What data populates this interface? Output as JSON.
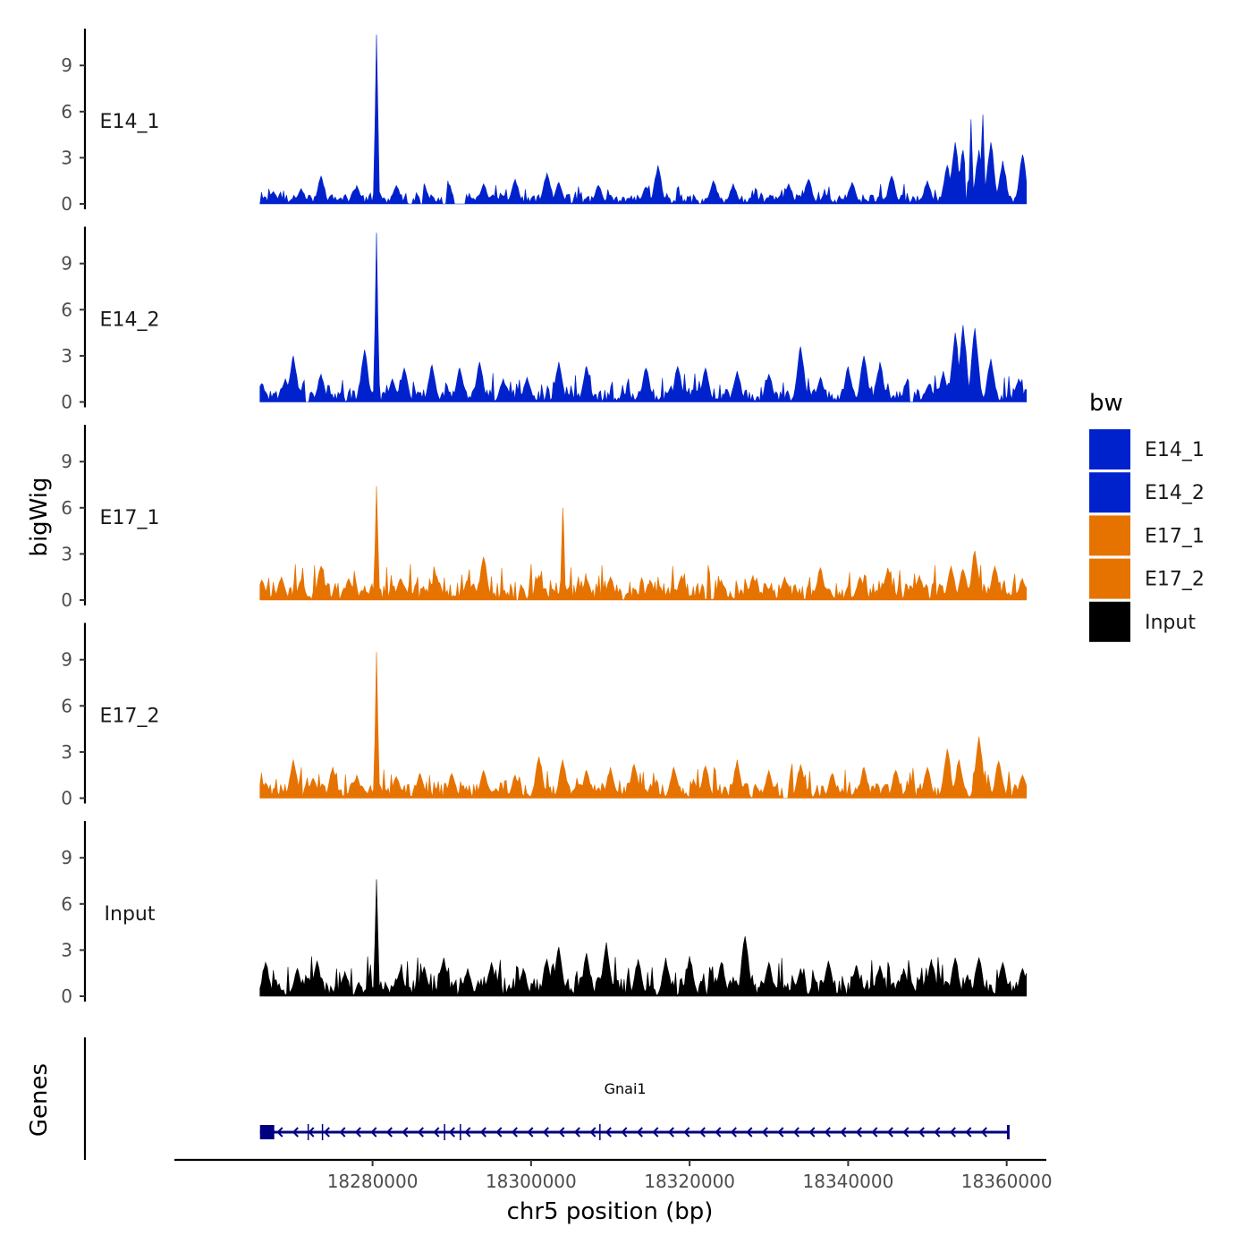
{
  "chart_data": {
    "type": "area",
    "title": "",
    "xlabel": "chr5 position (bp)",
    "ylabel": "bigWig",
    "genes_label": "Genes",
    "xlim": [
      18255000,
      18365000
    ],
    "x_ticks": [
      18280000,
      18300000,
      18320000,
      18340000,
      18360000
    ],
    "x_tick_labels": [
      "18280000",
      "18300000",
      "18320000",
      "18340000",
      "18360000"
    ],
    "ylim": [
      0,
      11.5
    ],
    "y_ticks": [
      0,
      3,
      6,
      9
    ],
    "y_tick_labels": [
      "0",
      "3",
      "6",
      "9"
    ],
    "data_range": [
      18265800,
      18362500
    ],
    "legend": {
      "title": "bw",
      "entries": [
        {
          "label": "E14_1",
          "color": "#0022CC"
        },
        {
          "label": "E14_2",
          "color": "#0022CC"
        },
        {
          "label": "E17_1",
          "color": "#E67300"
        },
        {
          "label": "E17_2",
          "color": "#E67300"
        },
        {
          "label": "Input",
          "color": "#000000"
        }
      ]
    },
    "series": [
      {
        "name": "E14_1",
        "color": "#0022CC",
        "baseline": 0.5,
        "peaks": [
          [
            18267500,
            0.8
          ],
          [
            18271000,
            1.0
          ],
          [
            18273500,
            1.8
          ],
          [
            18278000,
            1.2
          ],
          [
            18280500,
            11.0
          ],
          [
            18283000,
            1.2
          ],
          [
            18286500,
            1.3
          ],
          [
            18289500,
            1.5
          ],
          [
            18294000,
            1.3
          ],
          [
            18298000,
            1.6
          ],
          [
            18302000,
            2.0
          ],
          [
            18303500,
            1.4
          ],
          [
            18308500,
            1.2
          ],
          [
            18314500,
            1.1
          ],
          [
            18316000,
            2.5
          ],
          [
            18323000,
            1.5
          ],
          [
            18325500,
            1.3
          ],
          [
            18332500,
            1.3
          ],
          [
            18335000,
            1.6
          ],
          [
            18340500,
            1.4
          ],
          [
            18345500,
            1.8
          ],
          [
            18350000,
            1.5
          ],
          [
            18352500,
            2.5
          ],
          [
            18353500,
            4.0
          ],
          [
            18354500,
            3.5
          ],
          [
            18355500,
            5.5
          ],
          [
            18356500,
            3.5
          ],
          [
            18357000,
            5.8
          ],
          [
            18358000,
            4.0
          ],
          [
            18359500,
            2.8
          ],
          [
            18362000,
            3.2
          ]
        ],
        "gaps": [
          [
            18284500,
            18285000
          ],
          [
            18286000,
            18286500
          ],
          [
            18288800,
            18289500
          ],
          [
            18290200,
            18291800
          ],
          [
            18354800,
            18355000
          ]
        ]
      },
      {
        "name": "E14_2",
        "color": "#0022CC",
        "baseline": 0.7,
        "peaks": [
          [
            18266000,
            1.2
          ],
          [
            18269000,
            1.5
          ],
          [
            18270000,
            3.0
          ],
          [
            18273500,
            1.8
          ],
          [
            18279000,
            3.4
          ],
          [
            18280500,
            11.0
          ],
          [
            18282500,
            1.5
          ],
          [
            18284000,
            2.2
          ],
          [
            18287500,
            2.4
          ],
          [
            18291000,
            2.2
          ],
          [
            18293500,
            2.6
          ],
          [
            18296500,
            1.5
          ],
          [
            18299500,
            1.6
          ],
          [
            18303500,
            2.6
          ],
          [
            18307000,
            2.3
          ],
          [
            18314500,
            2.2
          ],
          [
            18318500,
            2.3
          ],
          [
            18322000,
            2.2
          ],
          [
            18326000,
            2.0
          ],
          [
            18330000,
            1.8
          ],
          [
            18334000,
            3.6
          ],
          [
            18336500,
            1.6
          ],
          [
            18340000,
            2.3
          ],
          [
            18342000,
            3.0
          ],
          [
            18344000,
            2.6
          ],
          [
            18347500,
            1.5
          ],
          [
            18352000,
            2.0
          ],
          [
            18353500,
            4.5
          ],
          [
            18354500,
            5.0
          ],
          [
            18356000,
            4.8
          ],
          [
            18358000,
            2.8
          ],
          [
            18361500,
            1.5
          ]
        ],
        "gaps": [
          [
            18271500,
            18272000
          ],
          [
            18347700,
            18348300
          ]
        ]
      },
      {
        "name": "E17_1",
        "color": "#E67300",
        "baseline": 0.9,
        "peaks": [
          [
            18266000,
            1.3
          ],
          [
            18268500,
            1.5
          ],
          [
            18271000,
            1.3
          ],
          [
            18273500,
            2.2
          ],
          [
            18277000,
            1.4
          ],
          [
            18280500,
            7.4
          ],
          [
            18283500,
            1.4
          ],
          [
            18288000,
            1.6
          ],
          [
            18292000,
            1.3
          ],
          [
            18294000,
            2.8
          ],
          [
            18298000,
            1.2
          ],
          [
            18301000,
            1.6
          ],
          [
            18304000,
            6.0
          ],
          [
            18307000,
            1.4
          ],
          [
            18310000,
            1.5
          ],
          [
            18315000,
            1.3
          ],
          [
            18319000,
            1.6
          ],
          [
            18324000,
            1.3
          ],
          [
            18328000,
            1.6
          ],
          [
            18332000,
            1.5
          ],
          [
            18336500,
            2.1
          ],
          [
            18341500,
            1.5
          ],
          [
            18345000,
            2.1
          ],
          [
            18349000,
            1.6
          ],
          [
            18353000,
            2.2
          ],
          [
            18354500,
            2.0
          ],
          [
            18356000,
            3.2
          ],
          [
            18358500,
            2.2
          ],
          [
            18362000,
            1.4
          ]
        ],
        "gaps": [
          [
            18297600,
            18298400
          ]
        ]
      },
      {
        "name": "E17_2",
        "color": "#E67300",
        "baseline": 0.8,
        "peaks": [
          [
            18266500,
            1.0
          ],
          [
            18270000,
            2.5
          ],
          [
            18272500,
            1.3
          ],
          [
            18275000,
            2.0
          ],
          [
            18278000,
            1.5
          ],
          [
            18280500,
            9.5
          ],
          [
            18283000,
            1.4
          ],
          [
            18286000,
            1.6
          ],
          [
            18290000,
            1.6
          ],
          [
            18294000,
            1.8
          ],
          [
            18298000,
            1.5
          ],
          [
            18301000,
            2.7
          ],
          [
            18304000,
            2.5
          ],
          [
            18307000,
            1.8
          ],
          [
            18310000,
            2.0
          ],
          [
            18313000,
            2.2
          ],
          [
            18318000,
            2.0
          ],
          [
            18322000,
            2.1
          ],
          [
            18326000,
            2.5
          ],
          [
            18330000,
            1.8
          ],
          [
            18334000,
            2.2
          ],
          [
            18338000,
            1.6
          ],
          [
            18342000,
            2.0
          ],
          [
            18346000,
            1.8
          ],
          [
            18350000,
            2.0
          ],
          [
            18352500,
            3.2
          ],
          [
            18354000,
            2.5
          ],
          [
            18356500,
            4.0
          ],
          [
            18359000,
            2.4
          ],
          [
            18362000,
            1.5
          ]
        ],
        "gaps": [
          [
            18331800,
            18332400
          ]
        ]
      },
      {
        "name": "Input",
        "color": "#000000",
        "baseline": 1.0,
        "peaks": [
          [
            18266500,
            2.2
          ],
          [
            18270500,
            1.8
          ],
          [
            18273000,
            2.3
          ],
          [
            18276500,
            1.6
          ],
          [
            18280500,
            7.6
          ],
          [
            18283500,
            1.7
          ],
          [
            18286500,
            1.9
          ],
          [
            18289000,
            2.5
          ],
          [
            18292000,
            1.8
          ],
          [
            18295000,
            2.2
          ],
          [
            18299000,
            1.8
          ],
          [
            18302000,
            2.4
          ],
          [
            18303500,
            3.2
          ],
          [
            18307000,
            2.8
          ],
          [
            18309500,
            3.5
          ],
          [
            18313500,
            2.4
          ],
          [
            18317000,
            2.5
          ],
          [
            18320000,
            2.6
          ],
          [
            18324000,
            2.2
          ],
          [
            18327000,
            3.9
          ],
          [
            18330000,
            2.2
          ],
          [
            18334000,
            1.8
          ],
          [
            18337500,
            2.3
          ],
          [
            18341000,
            2.0
          ],
          [
            18344000,
            2.0
          ],
          [
            18347000,
            1.8
          ],
          [
            18350500,
            2.4
          ],
          [
            18353500,
            2.5
          ],
          [
            18356500,
            2.5
          ],
          [
            18359500,
            2.2
          ],
          [
            18362000,
            1.8
          ]
        ],
        "gaps": []
      }
    ],
    "gene": {
      "name": "Gnai1",
      "start": 18265800,
      "end": 18360200,
      "strand": "-",
      "color": "#000080",
      "exons": [
        [
          18265800,
          18267600
        ],
        [
          18271800,
          18271950
        ],
        [
          18273600,
          18273750
        ],
        [
          18289000,
          18289150
        ],
        [
          18291000,
          18291150
        ],
        [
          18308600,
          18308750
        ]
      ]
    }
  }
}
